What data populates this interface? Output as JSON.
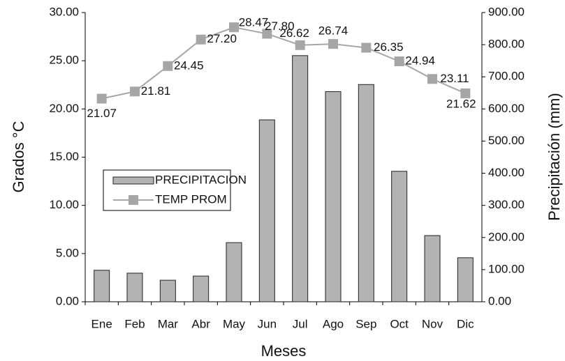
{
  "chart_data": {
    "type": "bar-line",
    "xlabel": "Meses",
    "ylabel": "Grados °C",
    "y2label": "Precipitación (mm)",
    "categories": [
      "Ene",
      "Feb",
      "Mar",
      "Abr",
      "May",
      "Jun",
      "Jul",
      "Ago",
      "Sep",
      "Oct",
      "Nov",
      "Dic"
    ],
    "series": [
      {
        "name": "PRECIPITACION",
        "type": "bar",
        "axis": "y2",
        "color": "#b3b3b3",
        "values": [
          98,
          89,
          67,
          80,
          184,
          566,
          766,
          654,
          676,
          406,
          206,
          137
        ]
      },
      {
        "name": "TEMP PROM",
        "type": "line",
        "axis": "y",
        "color": "#a6a6a6",
        "values": [
          21.07,
          21.81,
          24.45,
          27.2,
          28.47,
          27.8,
          26.62,
          26.74,
          26.35,
          24.94,
          23.11,
          21.62
        ],
        "value_labels": [
          "21.07",
          "21.81",
          "24.45",
          "27.20",
          "28.47",
          "27.80",
          "26.62",
          "26.74",
          "26.35",
          "24.94",
          "23.11",
          "21.62"
        ]
      }
    ],
    "ylim": [
      0,
      30
    ],
    "yticks": [
      {
        "value": 0,
        "label": "0.00"
      },
      {
        "value": 5,
        "label": "5.00"
      },
      {
        "value": 10,
        "label": "10.00"
      },
      {
        "value": 15,
        "label": "15.00"
      },
      {
        "value": 20,
        "label": "20.00"
      },
      {
        "value": 25,
        "label": "25.00"
      },
      {
        "value": 30,
        "label": "30.00"
      }
    ],
    "y2lim": [
      0,
      900
    ],
    "y2ticks": [
      {
        "value": 0,
        "label": "0.00"
      },
      {
        "value": 100,
        "label": "100.00"
      },
      {
        "value": 200,
        "label": "200.00"
      },
      {
        "value": 300,
        "label": "300.00"
      },
      {
        "value": 400,
        "label": "400.00"
      },
      {
        "value": 500,
        "label": "500.00"
      },
      {
        "value": 600,
        "label": "600.00"
      },
      {
        "value": 700,
        "label": "700.00"
      },
      {
        "value": 800,
        "label": "800.00"
      },
      {
        "value": 900,
        "label": "900.00"
      }
    ],
    "grid": false,
    "legend": "left"
  }
}
